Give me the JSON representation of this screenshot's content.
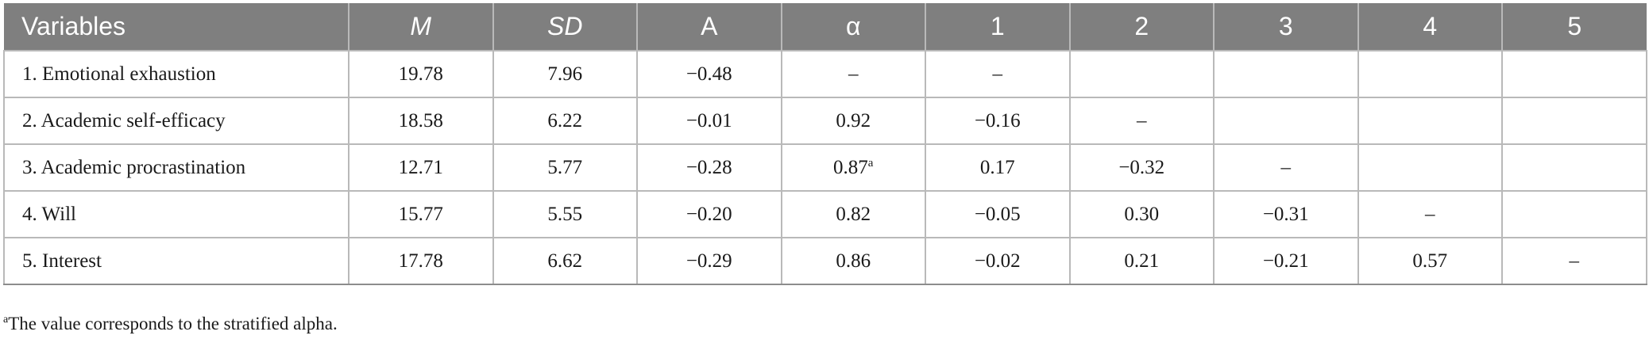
{
  "table": {
    "headers": [
      "Variables",
      "M",
      "SD",
      "A",
      "α",
      "1",
      "2",
      "3",
      "4",
      "5"
    ],
    "rows": [
      {
        "variable": "1. Emotional exhaustion",
        "m": "19.78",
        "sd": "7.96",
        "a": "−0.48",
        "alpha": "–",
        "alpha_note": "",
        "c1": "–",
        "c2": "",
        "c3": "",
        "c4": "",
        "c5": ""
      },
      {
        "variable": "2. Academic self-efficacy",
        "m": "18.58",
        "sd": "6.22",
        "a": "−0.01",
        "alpha": "0.92",
        "alpha_note": "",
        "c1": "−0.16",
        "c2": "–",
        "c3": "",
        "c4": "",
        "c5": ""
      },
      {
        "variable": "3. Academic procrastination",
        "m": "12.71",
        "sd": "5.77",
        "a": "−0.28",
        "alpha": "0.87",
        "alpha_note": "a",
        "c1": "0.17",
        "c2": "−0.32",
        "c3": "–",
        "c4": "",
        "c5": ""
      },
      {
        "variable": "4. Will",
        "m": "15.77",
        "sd": "5.55",
        "a": "−0.20",
        "alpha": "0.82",
        "alpha_note": "",
        "c1": "−0.05",
        "c2": "0.30",
        "c3": "−0.31",
        "c4": "–",
        "c5": ""
      },
      {
        "variable": "5. Interest",
        "m": "17.78",
        "sd": "6.62",
        "a": "−0.29",
        "alpha": "0.86",
        "alpha_note": "",
        "c1": "−0.02",
        "c2": "0.21",
        "c3": "−0.21",
        "c4": "0.57",
        "c5": "–"
      }
    ]
  },
  "footnote": {
    "mark": "a",
    "text": "The value corresponds to the stratified alpha."
  },
  "colors": {
    "header_background": "#7f7f7f",
    "header_text": "#ffffff",
    "grid_line": "#b9b9b9"
  }
}
